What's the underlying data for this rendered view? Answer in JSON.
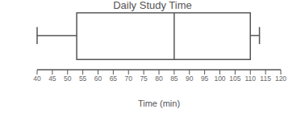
{
  "chart_data": {
    "type": "box",
    "title": "Daily Study Time",
    "xlabel": "Time (min)",
    "box": {
      "min": 40,
      "q1": 53,
      "median": 85,
      "q3": 110,
      "max": 113
    },
    "xlim": [
      40,
      120
    ],
    "xticks": [
      40,
      45,
      50,
      55,
      60,
      65,
      70,
      75,
      80,
      85,
      90,
      95,
      100,
      105,
      110,
      115,
      120
    ],
    "grid": false
  }
}
